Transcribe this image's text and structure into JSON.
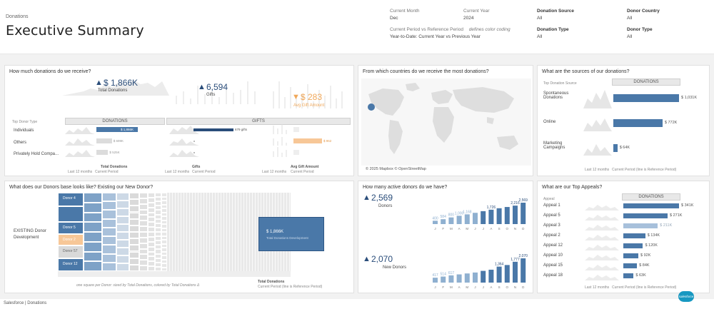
{
  "header": {
    "breadcrumb": "Donations",
    "title": "Executive Summary",
    "current_month_label": "Current Month",
    "current_month_value": "Dec",
    "current_year_label": "Current Year",
    "current_year_value": "2024",
    "period_label": "Current Period vs Reference Period",
    "color_coding_label": "defines color coding",
    "period_value": "Year-to-Date: Current Year vs Previous Year",
    "donation_source_label": "Donation Source",
    "donation_source_value": "All",
    "donor_country_label": "Donor Country",
    "donor_country_value": "All",
    "donation_type_label": "Donation Type",
    "donation_type_value": "All",
    "donor_type_label": "Donor Type",
    "donor_type_value": "All"
  },
  "how_much": {
    "title": "How much donations do we receive?",
    "total_donations_value": "$ 1,866K",
    "total_donations_label": "Total Donations",
    "gifts_value": "6,594",
    "gifts_label": "Gifts",
    "avg_gift_value": "$ 283",
    "avg_gift_label": "Avg Gift Amount",
    "donor_type_header": "Top Donor Type",
    "donations_header": "DONATIONS",
    "gifts_header": "GIFTS",
    "rows": [
      "Individuals",
      "Others",
      "Privately Hold Compa..."
    ],
    "donation_bar_labels": [
      "$ 1,866K",
      "$ 699K",
      "$ 525K"
    ],
    "donation_bar_values": [
      1866,
      699,
      525
    ],
    "gift_bar_labels": [
      "679 gifts",
      "",
      ""
    ],
    "gift_bar_values": [
      679,
      0,
      0
    ],
    "avg_bar_labels": [
      "",
      "$ 962",
      ""
    ],
    "avg_bar_values": [
      0,
      962,
      0
    ],
    "foot_labels": [
      "Total Donations",
      "Gifts",
      "Avg Gift Amount"
    ],
    "foot_sub": [
      "Last 12 months",
      "Current Period"
    ]
  },
  "countries": {
    "title": "From which countries do we receive the most donations?",
    "attribution": "© 2025 Mapbox © OpenStreetMap"
  },
  "sources": {
    "title": "What are the sources of our donations?",
    "col_header": "Top Donation Source",
    "donations_header": "DONATIONS",
    "rows": [
      "Spontaneous Donations",
      "Online",
      "Marketing Campaigns"
    ],
    "bar_labels": [
      "$ 1,031K",
      "$ 772K",
      "$ 64K"
    ],
    "bar_values": [
      1031,
      772,
      64
    ],
    "foot": "Last 12 months",
    "foot2": "Current Period (line is Reference Period)"
  },
  "donors_base": {
    "title": "What does our Donors base looks like? Existing our New Donor?",
    "segment_label": "EXISTING Donor Development",
    "tiles": [
      "Donor 4",
      "Donor 3",
      "Donor 5",
      "Donor 2",
      "Donor 57",
      "Donor 12"
    ],
    "summary_value": "$ 1,866K",
    "summary_sub": "Total Donations Development",
    "caption": "one square per Donor: sized by Total Donations, colored by Total Donations Δ",
    "foot_label": "Total Donations",
    "foot_sub": "Current Period (line is Reference Period)"
  },
  "active_donors": {
    "title": "How many active donors do we have?",
    "donors_value": "2,569",
    "donors_label": "Donors",
    "new_donors_value": "2,070",
    "new_donors_label": "New Donors",
    "months": [
      "J",
      "F",
      "M",
      "A",
      "M",
      "J",
      "J",
      "A",
      "S",
      "O",
      "N",
      "D"
    ]
  },
  "appeals": {
    "title": "What are our Top Appeals?",
    "col_header": "Appeal",
    "donations_header": "DONATIONS",
    "rows": [
      "Appeal 1",
      "Appeal 5",
      "Appeal 3",
      "Appeal 2",
      "Appeal 12",
      "Appeal 10",
      "Appeal 15",
      "Appeal 18"
    ],
    "bar_labels": [
      "$ 341K",
      "$ 271K",
      "$ 211K",
      "$ 134K",
      "$ 120K",
      "$ 92K",
      "$ 84K",
      "$ 63K"
    ],
    "bar_values": [
      341,
      271,
      211,
      134,
      120,
      92,
      84,
      63
    ],
    "foot": "Last 12 months",
    "foot2": "Current Period (line is Reference Period)"
  },
  "chart_data": [
    {
      "type": "bar",
      "title": "What are the sources of our donations?",
      "categories": [
        "Spontaneous Donations",
        "Online",
        "Marketing Campaigns"
      ],
      "values": [
        1031,
        772,
        64
      ]
    },
    {
      "type": "bar",
      "title": "What are our Top Appeals?",
      "categories": [
        "Appeal 1",
        "Appeal 5",
        "Appeal 3",
        "Appeal 2",
        "Appeal 12",
        "Appeal 10",
        "Appeal 15",
        "Appeal 18"
      ],
      "values": [
        341,
        271,
        211,
        134,
        120,
        92,
        84,
        63
      ]
    },
    {
      "type": "bar",
      "title": "Donors",
      "categories": [
        "J",
        "F",
        "M",
        "A",
        "M",
        "J",
        "J",
        "A",
        "S",
        "O",
        "N",
        "D"
      ],
      "values": [
        400,
        584,
        800,
        1000,
        1168,
        1350,
        1550,
        1726,
        1900,
        2050,
        2216,
        2569
      ],
      "data_labels": [
        "400",
        "584",
        "800",
        "1,000",
        "1,168",
        "",
        "",
        "1,726",
        "",
        "",
        "2,216",
        "2,569"
      ]
    },
    {
      "type": "bar",
      "title": "New Donors",
      "categories": [
        "J",
        "F",
        "M",
        "A",
        "M",
        "J",
        "J",
        "A",
        "S",
        "O",
        "N",
        "D"
      ],
      "values": [
        417,
        514,
        617,
        700,
        780,
        860,
        1000,
        1100,
        1364,
        1500,
        1777,
        2070
      ],
      "data_labels": [
        "417",
        "514",
        "617",
        "",
        "",
        "",
        "",
        "",
        "1,364",
        "",
        "1,777",
        "2,070"
      ]
    }
  ],
  "footer": {
    "text": "Salesforce | Donations",
    "logo": "salesforce"
  }
}
